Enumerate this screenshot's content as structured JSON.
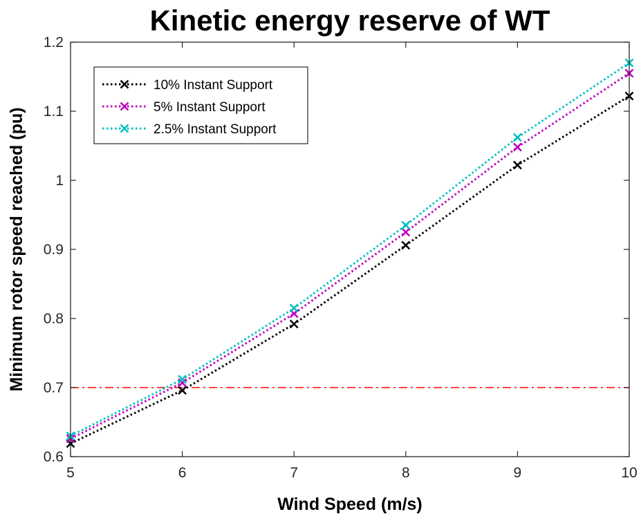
{
  "chart_data": {
    "type": "line",
    "title": "Kinetic energy reserve of WT",
    "xlabel": "Wind Speed (m/s)",
    "ylabel": "Minimum rotor speed reached (pu)",
    "xlim": [
      5,
      10
    ],
    "ylim": [
      0.6,
      1.2
    ],
    "xticks": [
      "5",
      "6",
      "7",
      "8",
      "9",
      "10"
    ],
    "yticks": [
      "0.6",
      "0.7",
      "0.8",
      "0.9",
      "1",
      "1.1",
      "1.2"
    ],
    "x": [
      5,
      6,
      7,
      8,
      9,
      10
    ],
    "series": [
      {
        "name": "10% Instant Support",
        "color": "#000000",
        "marker": "x",
        "line_style": "dotted",
        "values": [
          0.619,
          0.696,
          0.792,
          0.906,
          1.022,
          1.122
        ]
      },
      {
        "name": "5% Instant Support",
        "color": "#bf00bf",
        "marker": "x",
        "line_style": "dotted",
        "values": [
          0.626,
          0.707,
          0.807,
          0.925,
          1.048,
          1.155
        ]
      },
      {
        "name": "2.5% Instant Support",
        "color": "#00bfbf",
        "marker": "x",
        "line_style": "dotted",
        "values": [
          0.63,
          0.712,
          0.815,
          0.935,
          1.062,
          1.17
        ]
      }
    ],
    "reference_line": {
      "y": 0.7,
      "color": "#ff0000",
      "line_style": "dash-dot"
    },
    "grid": false,
    "legend_position": "top-left"
  }
}
